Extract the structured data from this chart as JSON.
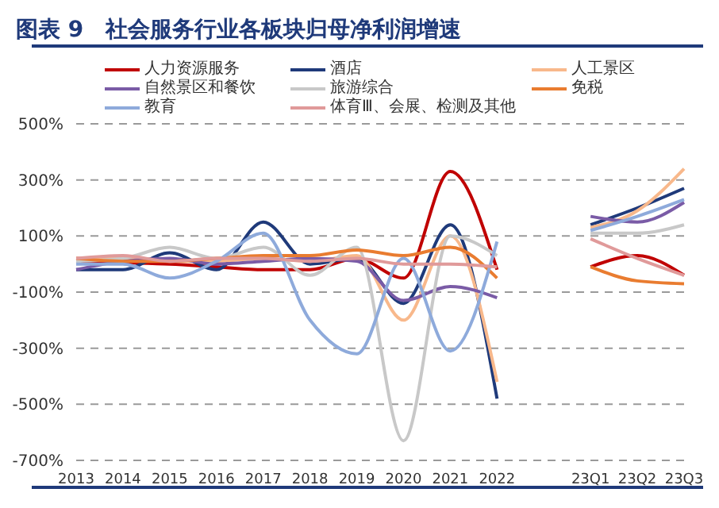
{
  "chart_data": {
    "type": "line",
    "title": "图表 9　社会服务行业各板块归母净利润增速",
    "categories": [
      "2013",
      "2014",
      "2015",
      "2016",
      "2017",
      "2018",
      "2019",
      "2020",
      "2021",
      "2022",
      null,
      "23Q1",
      "23Q2",
      "23Q3"
    ],
    "series": [
      {
        "name": "人力资源服务",
        "color": "#c00000",
        "values": [
          10,
          5,
          0,
          -10,
          -20,
          -20,
          20,
          -50,
          330,
          -20,
          null,
          -10,
          30,
          -40
        ]
      },
      {
        "name": "酒店",
        "color": "#1f3a7a",
        "values": [
          -20,
          -20,
          40,
          -20,
          150,
          0,
          20,
          -140,
          140,
          -480,
          null,
          140,
          200,
          270
        ]
      },
      {
        "name": "人工景区",
        "color": "#f8b88b",
        "values": [
          20,
          20,
          10,
          10,
          20,
          10,
          30,
          -200,
          100,
          -420,
          null,
          130,
          190,
          340
        ]
      },
      {
        "name": "自然景区和餐饮",
        "color": "#7a5ba6",
        "values": [
          -20,
          10,
          20,
          0,
          10,
          20,
          10,
          -130,
          -80,
          -120,
          null,
          170,
          150,
          220
        ]
      },
      {
        "name": "旅游综合",
        "color": "#c8c8c8",
        "values": [
          10,
          20,
          60,
          20,
          60,
          -40,
          60,
          -630,
          100,
          30,
          null,
          110,
          110,
          140
        ]
      },
      {
        "name": "免税",
        "color": "#e97c30",
        "values": [
          20,
          10,
          10,
          20,
          30,
          30,
          50,
          30,
          60,
          -50,
          null,
          -10,
          -60,
          -70
        ]
      },
      {
        "name": "教育",
        "color": "#8eaadb",
        "values": [
          0,
          0,
          -50,
          10,
          110,
          -200,
          -320,
          20,
          -310,
          80,
          null,
          120,
          170,
          230
        ]
      },
      {
        "name": "体育Ⅲ、会展、检测及其他",
        "color": "#e09a9a",
        "values": [
          20,
          30,
          10,
          20,
          20,
          10,
          20,
          0,
          0,
          -10,
          null,
          90,
          20,
          -40
        ]
      }
    ],
    "ylim": [
      -700,
      500
    ],
    "yticks": [
      {
        "value": -700,
        "label": "-700%"
      },
      {
        "value": -500,
        "label": "-500%"
      },
      {
        "value": -300,
        "label": "-300%"
      },
      {
        "value": -100,
        "label": "-100%"
      },
      {
        "value": 100,
        "label": "100%"
      },
      {
        "value": 300,
        "label": "300%"
      },
      {
        "value": 500,
        "label": "500%"
      }
    ],
    "grid": "y",
    "legend": "top",
    "marker": "none",
    "line_style": "solid"
  }
}
